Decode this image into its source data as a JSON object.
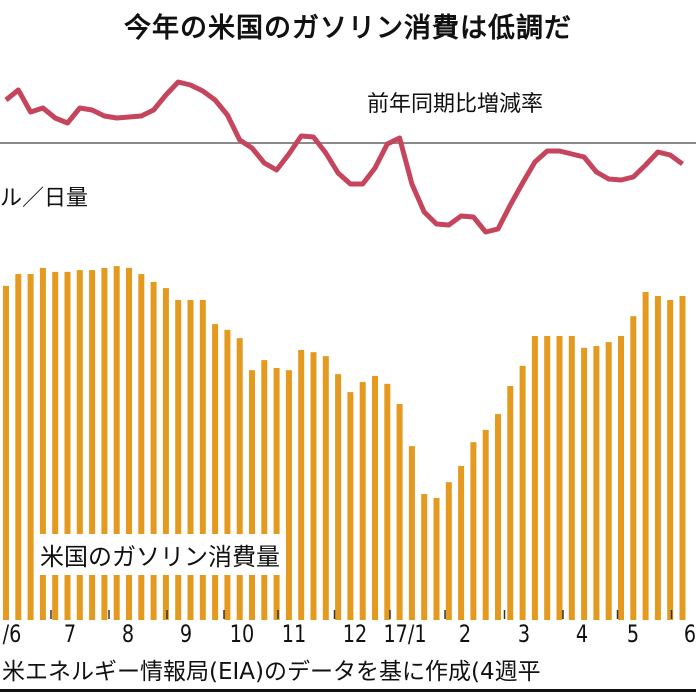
{
  "title": "今年の米国のガソリン消費は低調だ",
  "labels": {
    "line_label": "前年同期比増減率",
    "unit_label": "ル／日量",
    "bar_legend": "米国のガソリン消費量",
    "source": "米エネルギー情報局(EIA)のデータを基に作成(4週平"
  },
  "chart_data": {
    "type": "bar+line",
    "title": "今年の米国のガソリン消費は低調だ",
    "x_ticks": [
      "/6",
      "7",
      "8",
      "9",
      "10",
      "11",
      "12",
      "17/1",
      "2",
      "3",
      "4",
      "5",
      "6"
    ],
    "colors": {
      "bars": "#E39A1E",
      "line": "#C5455C",
      "zero_line": "#8a8a8a"
    },
    "series": [
      {
        "name": "米国のガソリン消費量",
        "type": "bar",
        "values": [
          9.28,
          9.61,
          9.61,
          9.78,
          9.67,
          9.67,
          9.72,
          9.72,
          9.78,
          9.83,
          9.78,
          9.61,
          9.39,
          9.22,
          8.89,
          8.89,
          8.89,
          8.22,
          8.06,
          7.83,
          6.94,
          7.22,
          7.0,
          6.94,
          7.5,
          7.44,
          7.33,
          6.83,
          6.33,
          6.61,
          6.78,
          6.56,
          6.0,
          4.83,
          3.5,
          3.39,
          3.83,
          4.28,
          4.94,
          5.28,
          5.72,
          6.5,
          7.06,
          7.89,
          7.89,
          7.89,
          7.89,
          7.56,
          7.61,
          7.72,
          7.89,
          8.44,
          9.11,
          9.0,
          8.89,
          9.0
        ]
      },
      {
        "name": "前年同期比増減率",
        "type": "line",
        "values": [
          4.3,
          5.3,
          3.1,
          3.5,
          2.5,
          2.0,
          3.5,
          3.3,
          2.7,
          2.5,
          2.6,
          2.7,
          3.3,
          4.8,
          6.1,
          5.8,
          5.2,
          4.3,
          2.8,
          0.3,
          -0.5,
          -2.0,
          -2.7,
          -1.1,
          0.7,
          0.6,
          -1.0,
          -3.0,
          -4.1,
          -4.1,
          -2.5,
          -0.1,
          0.5,
          -4.1,
          -6.9,
          -8.1,
          -8.2,
          -7.3,
          -7.4,
          -8.9,
          -8.6,
          -6.2,
          -4.0,
          -1.9,
          -0.8,
          -0.8,
          -1.1,
          -1.4,
          -2.9,
          -3.6,
          -3.7,
          -3.4,
          -2.2,
          -0.9,
          -1.2,
          -2.1
        ]
      }
    ],
    "grid": false
  }
}
